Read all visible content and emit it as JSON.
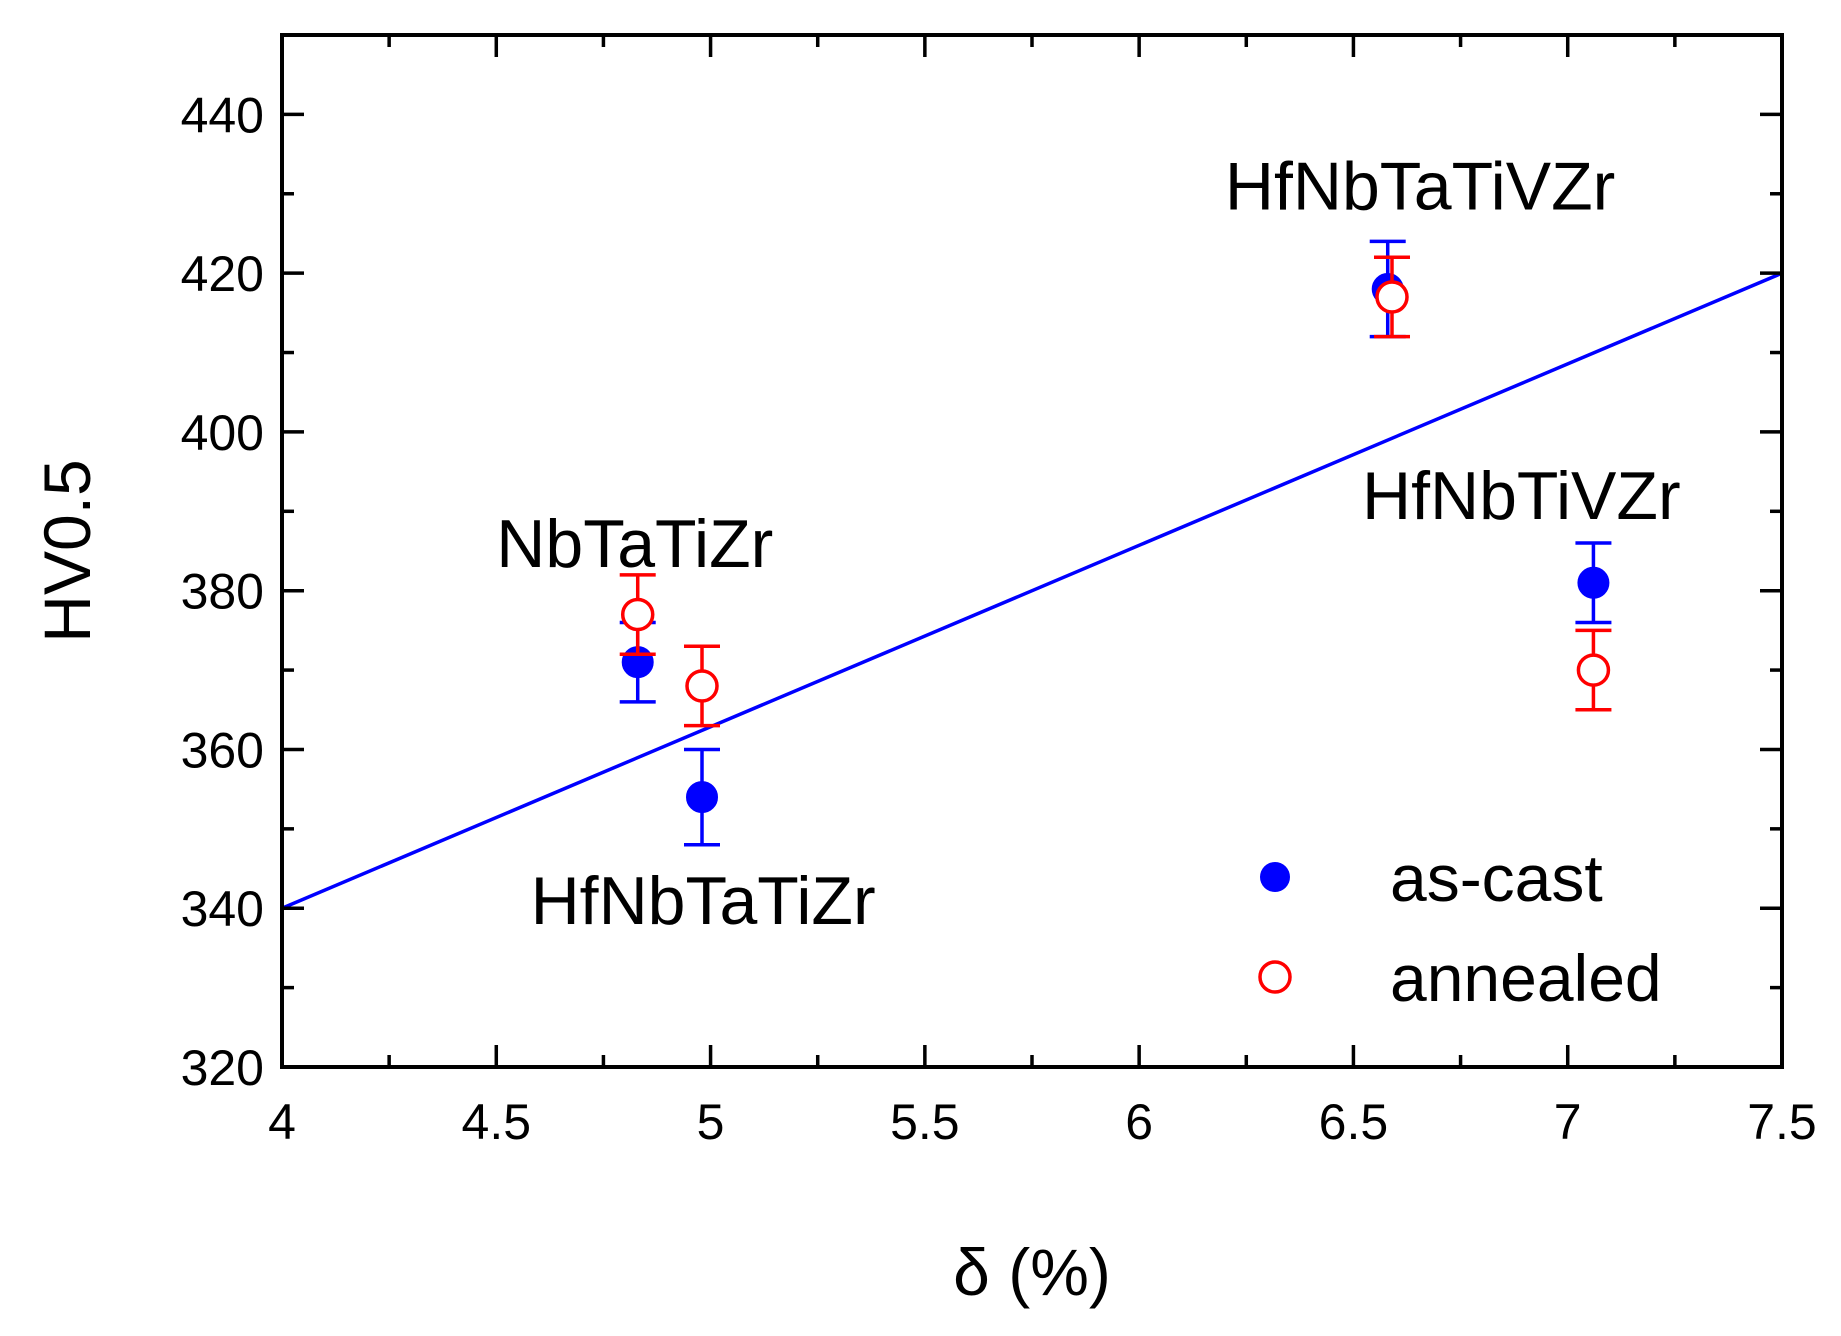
{
  "chart_data": {
    "type": "scatter",
    "title": "",
    "xlabel": "δ (%)",
    "ylabel": "HV0.5",
    "xlim": [
      4,
      7.5
    ],
    "ylim": [
      320,
      450
    ],
    "xticks": [
      4,
      4.5,
      5,
      5.5,
      6,
      6.5,
      7,
      7.5
    ],
    "xtick_labels": [
      "4",
      "4.5",
      "5",
      "5.5",
      "6",
      "6.5",
      "7",
      "7.5"
    ],
    "yticks": [
      320,
      340,
      360,
      380,
      400,
      420,
      440
    ],
    "ytick_labels": [
      "320",
      "340",
      "360",
      "380",
      "400",
      "420",
      "440"
    ],
    "grid": false,
    "legend_position": "bottom-right",
    "series": [
      {
        "name": "as-cast",
        "marker": "filled-circle",
        "color": "#0000ff",
        "points": [
          {
            "x": 4.83,
            "y": 371,
            "err": 5
          },
          {
            "x": 4.98,
            "y": 354,
            "err": 6
          },
          {
            "x": 6.58,
            "y": 418,
            "err": 6
          },
          {
            "x": 7.06,
            "y": 381,
            "err": 5
          }
        ]
      },
      {
        "name": "annealed",
        "marker": "open-circle",
        "color": "#ff0000",
        "points": [
          {
            "x": 4.83,
            "y": 377,
            "err": 5
          },
          {
            "x": 4.98,
            "y": 368,
            "err": 5
          },
          {
            "x": 6.59,
            "y": 417,
            "err": 5
          },
          {
            "x": 7.06,
            "y": 370,
            "err": 5
          }
        ]
      }
    ],
    "fit_line": {
      "color": "#0000ff",
      "x": [
        4,
        7.5
      ],
      "y": [
        340,
        420
      ]
    },
    "annotations": [
      {
        "text": "NbTaTiZr",
        "x": 4.5,
        "y": 383
      },
      {
        "text": "HfNbTaTiZr",
        "x": 4.58,
        "y": 338
      },
      {
        "text": "HfNbTaTiVZr",
        "x": 6.2,
        "y": 428
      },
      {
        "text": "HfNbTiVZr",
        "x": 6.52,
        "y": 389
      }
    ]
  }
}
